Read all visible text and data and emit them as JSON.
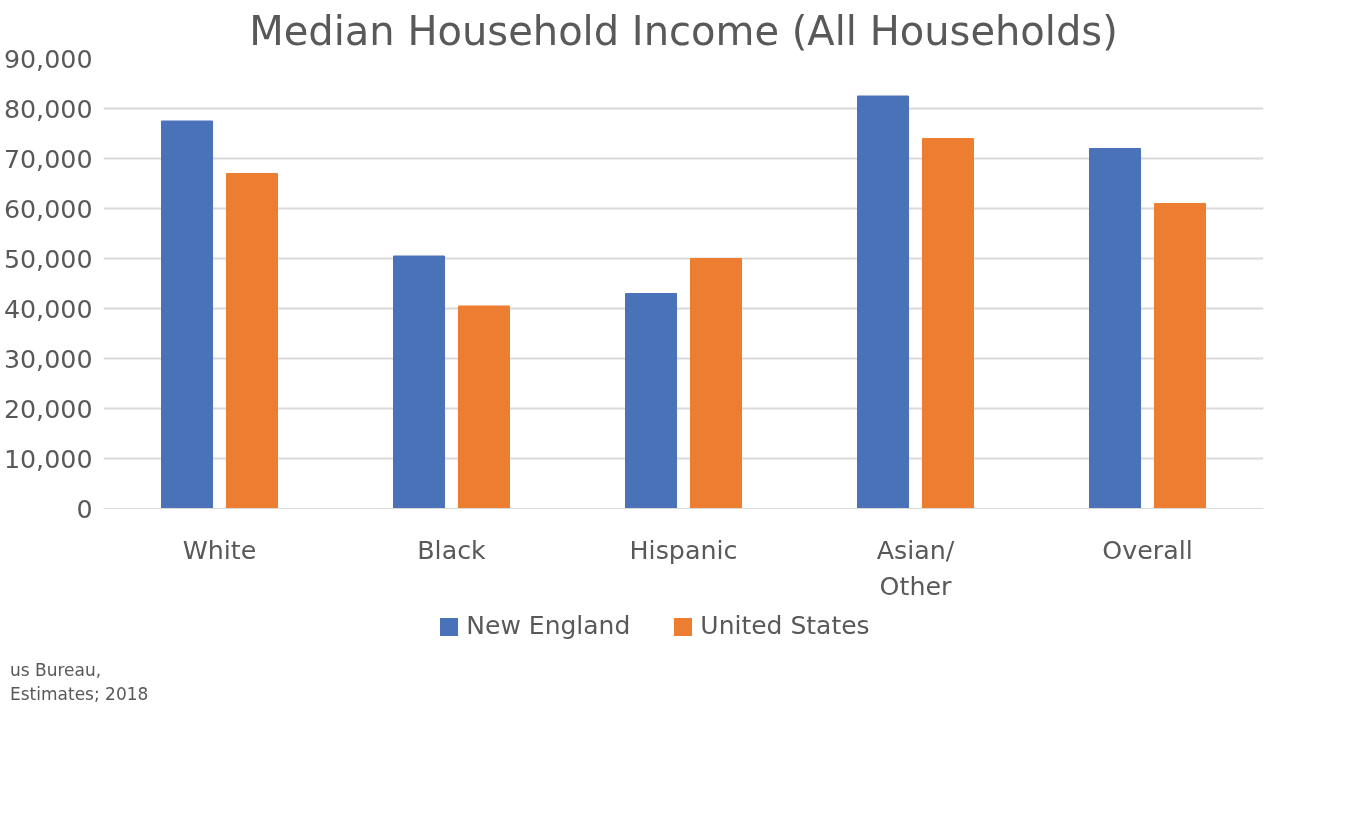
{
  "chart_data": {
    "type": "bar",
    "title": "Median Household Income (All Households)",
    "categories": [
      "White",
      "Black",
      "Hispanic",
      "Asian/\nOther",
      "Overall"
    ],
    "series": [
      {
        "name": "New England",
        "color": "#4a72b8",
        "values": [
          77500,
          50500,
          43000,
          82500,
          72000
        ]
      },
      {
        "name": "United States",
        "color": "#ed7d31",
        "values": [
          67000,
          40500,
          50000,
          74000,
          61000
        ]
      }
    ],
    "ylim": [
      0,
      90000
    ],
    "yticks": [
      {
        "value": 0,
        "label": "0"
      },
      {
        "value": 10000,
        "label": "10,000"
      },
      {
        "value": 20000,
        "label": "20,000"
      },
      {
        "value": 30000,
        "label": "30,000"
      },
      {
        "value": 40000,
        "label": "40,000"
      },
      {
        "value": 50000,
        "label": "50,000"
      },
      {
        "value": 60000,
        "label": "60,000"
      },
      {
        "value": 70000,
        "label": "70,000"
      },
      {
        "value": 80000,
        "label": "80,000"
      },
      {
        "value": 90000,
        "label": "90,000"
      }
    ],
    "grid": "y",
    "legend": "bottom",
    "annotations": [
      "us Bureau,\nEstimates; 2018"
    ]
  }
}
